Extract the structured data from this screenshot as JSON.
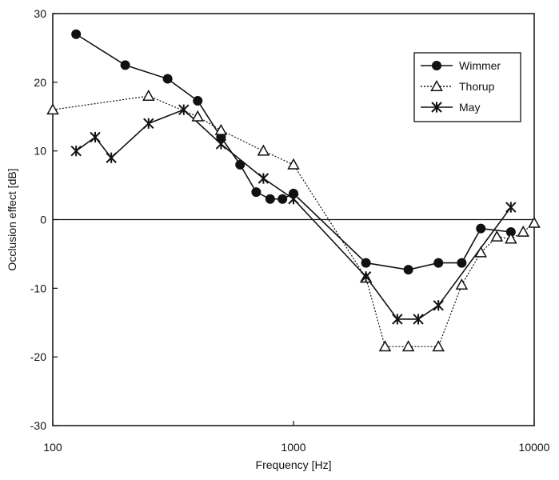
{
  "chart_data": {
    "type": "line",
    "title": "",
    "xlabel": "Frequency [Hz]",
    "ylabel": "Occlusion effect [dB]",
    "x_scale": "log",
    "xlim": [
      100,
      10000
    ],
    "ylim": [
      -30,
      30
    ],
    "x_ticks": [
      100,
      1000,
      10000
    ],
    "x_tick_labels": [
      "100",
      "1000",
      "10000"
    ],
    "y_ticks": [
      30,
      20,
      10,
      0,
      -10,
      -20,
      -30
    ],
    "y_tick_labels": [
      "30",
      "20",
      "10",
      "0",
      "-10",
      "-20",
      "-30"
    ],
    "grid": false,
    "legend_position": "top-right",
    "series": [
      {
        "name": "Wimmer",
        "marker": "filled-circle",
        "line_style": "solid",
        "color": "#111111",
        "x": [
          125,
          200,
          300,
          400,
          500,
          600,
          700,
          800,
          900,
          1000,
          2000,
          3000,
          4000,
          5000,
          6000,
          8000
        ],
        "y": [
          27,
          22.5,
          20.5,
          17.3,
          12,
          8,
          4,
          3,
          3,
          3.8,
          -6.3,
          -7.3,
          -6.3,
          -6.3,
          -1.3,
          -1.8
        ]
      },
      {
        "name": "Thorup",
        "marker": "open-triangle",
        "line_style": "dotted",
        "color": "#111111",
        "x": [
          100,
          250,
          400,
          500,
          750,
          1000,
          2000,
          2400,
          3000,
          4000,
          5000,
          6000,
          7000,
          8000,
          9000,
          10000
        ],
        "y": [
          16,
          18,
          15,
          13,
          10,
          8,
          -8.5,
          -18.5,
          -18.5,
          -18.5,
          -9.5,
          -4.8,
          -2.5,
          -2.8,
          -1.8,
          -0.5
        ]
      },
      {
        "name": "May",
        "marker": "asterisk",
        "line_style": "solid",
        "color": "#111111",
        "x": [
          125,
          150,
          175,
          250,
          350,
          500,
          750,
          1000,
          2000,
          2700,
          3300,
          4000,
          8000
        ],
        "y": [
          10,
          12,
          9,
          14,
          16,
          11,
          6,
          3,
          -8.3,
          -14.5,
          -14.5,
          -12.5,
          1.8
        ]
      }
    ]
  }
}
